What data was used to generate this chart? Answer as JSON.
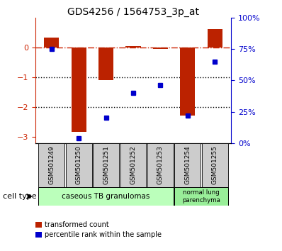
{
  "title": "GDS4256 / 1564753_3p_at",
  "samples": [
    "GSM501249",
    "GSM501250",
    "GSM501251",
    "GSM501252",
    "GSM501253",
    "GSM501254",
    "GSM501255"
  ],
  "transformed_count": [
    0.32,
    -2.82,
    -1.1,
    0.05,
    -0.05,
    -2.28,
    0.62
  ],
  "percentile_rank": [
    75,
    4,
    20,
    40,
    46,
    22,
    65
  ],
  "ylim_left": [
    -3.2,
    1.0
  ],
  "ylim_right": [
    0,
    100
  ],
  "yticks_left": [
    -3,
    -2,
    -1,
    0
  ],
  "yticks_right": [
    0,
    25,
    50,
    75,
    100
  ],
  "yticklabels_right": [
    "0%",
    "25%",
    "50%",
    "75%",
    "100%"
  ],
  "bar_color": "#bb2200",
  "dot_color": "#0000cc",
  "bar_width": 0.55,
  "hline_color": "#cc2200",
  "dotted_lines": [
    -1,
    -2
  ],
  "group1_indices": [
    0,
    1,
    2,
    3,
    4
  ],
  "group1_label": "caseous TB granulomas",
  "group1_color": "#bbffbb",
  "group2_indices": [
    5,
    6
  ],
  "group2_label": "normal lung\nparenchyma",
  "group2_color": "#99ee99",
  "cell_type_label": "cell type",
  "legend_items": [
    {
      "label": "transformed count",
      "color": "#bb2200"
    },
    {
      "label": "percentile rank within the sample",
      "color": "#0000cc"
    }
  ],
  "background_color": "#ffffff",
  "plot_bg": "#ffffff",
  "tick_color_left": "#cc2200",
  "tick_color_right": "#0000cc",
  "sample_box_color": "#cccccc"
}
